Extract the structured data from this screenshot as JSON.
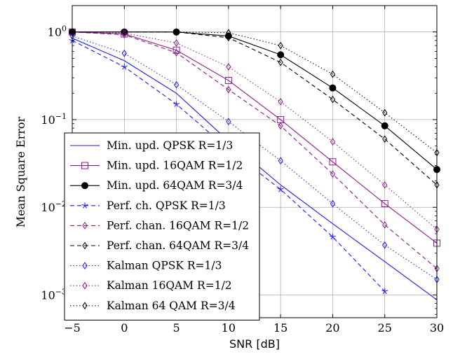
{
  "chart_data": {
    "type": "line",
    "xlabel": "SNR [dB]",
    "ylabel": "Mean Square Error",
    "x_ticks": [
      -5,
      0,
      5,
      10,
      15,
      20,
      25,
      30
    ],
    "x_tick_labels": [
      "−5",
      "0",
      "5",
      "10",
      "15",
      "20",
      "25",
      "30"
    ],
    "y_scale": "log",
    "y_ticks": [
      0.001,
      0.01,
      0.1,
      1
    ],
    "y_tick_labels": [
      {
        "base": "10",
        "exp": "−3"
      },
      {
        "base": "10",
        "exp": "−2"
      },
      {
        "base": "10",
        "exp": "−1"
      },
      {
        "base": "10",
        "exp": "0"
      }
    ],
    "xlim": [
      -5,
      30
    ],
    "ylim": [
      0.00055,
      2.0
    ],
    "legend_position": "bottom-left",
    "series": [
      {
        "name": "Min. upd. QPSK R=1/3",
        "color": "#1a1aff",
        "dash": "solid",
        "marker": "none",
        "x": [
          -5,
          0,
          5,
          10,
          15,
          20,
          25,
          30
        ],
        "y": [
          0.85,
          0.47,
          0.2,
          0.057,
          0.018,
          0.0065,
          0.0024,
          0.00088
        ]
      },
      {
        "name": "Min. upd. 16QAM R=1/2",
        "color": "#8b1a8b",
        "dash": "solid",
        "marker": "square",
        "x": [
          -5,
          0,
          5,
          10,
          15,
          20,
          25,
          30
        ],
        "y": [
          1.0,
          0.95,
          0.62,
          0.28,
          0.1,
          0.033,
          0.011,
          0.0039
        ]
      },
      {
        "name": "Min. upd. 64QAM R=3/4",
        "color": "#000000",
        "dash": "solid",
        "marker": "circle",
        "x": [
          -5,
          0,
          5,
          10,
          15,
          20,
          25,
          30
        ],
        "y": [
          1.0,
          1.0,
          1.0,
          0.9,
          0.55,
          0.23,
          0.085,
          0.027
        ]
      },
      {
        "name": "Perf. ch. QPSK R=1/3",
        "color": "#1a1aff",
        "dash": "dashed",
        "marker": "star",
        "x": [
          -5,
          0,
          5,
          10,
          15,
          20,
          25
        ],
        "y": [
          0.8,
          0.4,
          0.15,
          0.046,
          0.016,
          0.0046,
          0.0011
        ]
      },
      {
        "name": "Perf. chan. 16QAM R=1/2",
        "color": "#8b1a8b",
        "dash": "dashed",
        "marker": "diamond",
        "x": [
          -5,
          0,
          5,
          10,
          15,
          20,
          25,
          30
        ],
        "y": [
          1.0,
          0.93,
          0.58,
          0.22,
          0.085,
          0.024,
          0.0063,
          0.002
        ]
      },
      {
        "name": "Perf. chan. 64QAM R=3/4",
        "color": "#000000",
        "dash": "dashed",
        "marker": "diamond",
        "x": [
          -5,
          0,
          5,
          10,
          15,
          20,
          25,
          30
        ],
        "y": [
          1.0,
          1.0,
          1.0,
          0.86,
          0.45,
          0.17,
          0.06,
          0.018
        ]
      },
      {
        "name": "Kalman QPSK R=1/3",
        "color": "#1a1aff",
        "dash": "dotted",
        "marker": "diamond",
        "x": [
          -5,
          0,
          5,
          10,
          15,
          20,
          25,
          30
        ],
        "y": [
          0.9,
          0.57,
          0.25,
          0.095,
          0.034,
          0.011,
          0.0037,
          0.0015
        ]
      },
      {
        "name": "Kalman 16QAM R=1/2",
        "color": "#8b1a8b",
        "dash": "dotted",
        "marker": "diamond",
        "x": [
          -5,
          0,
          5,
          10,
          15,
          20,
          25,
          30
        ],
        "y": [
          1.0,
          0.97,
          0.75,
          0.4,
          0.16,
          0.056,
          0.018,
          0.0056
        ]
      },
      {
        "name": "Kalman 64 QAM R=3/4",
        "color": "#000000",
        "dash": "dotted",
        "marker": "diamond",
        "x": [
          -5,
          0,
          5,
          10,
          15,
          20,
          25,
          30
        ],
        "y": [
          1.0,
          1.0,
          1.0,
          0.98,
          0.7,
          0.33,
          0.12,
          0.042
        ]
      }
    ]
  }
}
